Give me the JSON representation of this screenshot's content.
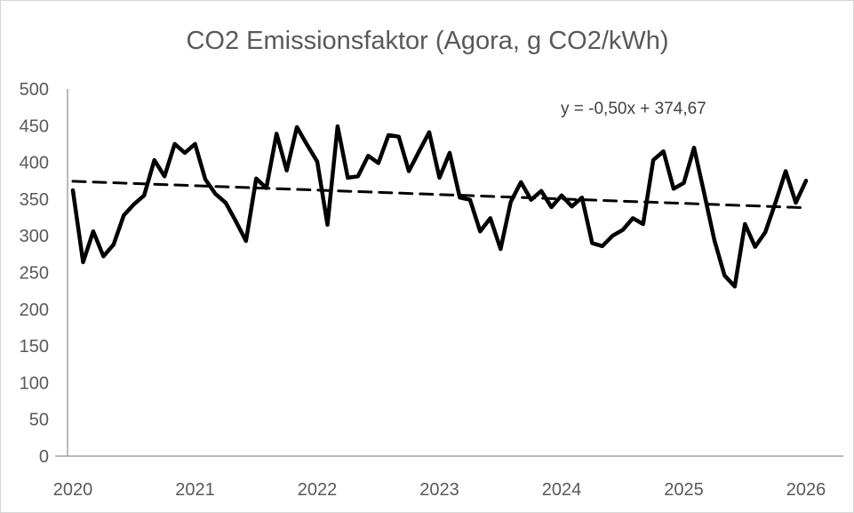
{
  "chart_data": {
    "type": "line",
    "title": "CO2 Emissionsfaktor (Agora, g CO2/kWh)",
    "xlabel": "",
    "ylabel": "",
    "ylim": [
      0,
      500
    ],
    "ytick_step": 50,
    "yticks": [
      0,
      50,
      100,
      150,
      200,
      250,
      300,
      350,
      400,
      450,
      500
    ],
    "xticks": [
      "2020",
      "2021",
      "2022",
      "2023",
      "2024",
      "2025",
      "2026"
    ],
    "grid": false,
    "legend": "none",
    "x": [
      "2020-01",
      "2020-02",
      "2020-03",
      "2020-04",
      "2020-05",
      "2020-06",
      "2020-07",
      "2020-08",
      "2020-09",
      "2020-10",
      "2020-11",
      "2020-12",
      "2021-01",
      "2021-02",
      "2021-03",
      "2021-04",
      "2021-05",
      "2021-06",
      "2021-07",
      "2021-08",
      "2021-09",
      "2021-10",
      "2021-11",
      "2021-12",
      "2022-01",
      "2022-02",
      "2022-03",
      "2022-04",
      "2022-05",
      "2022-06",
      "2022-07",
      "2022-08",
      "2022-09",
      "2022-10",
      "2022-11",
      "2022-12",
      "2023-01",
      "2023-02",
      "2023-03",
      "2023-04",
      "2023-05",
      "2023-06",
      "2023-07",
      "2023-08",
      "2023-09",
      "2023-10",
      "2023-11",
      "2023-12",
      "2024-01",
      "2024-02",
      "2024-03",
      "2024-04",
      "2024-05",
      "2024-06",
      "2024-07",
      "2024-08",
      "2024-09",
      "2024-10",
      "2024-11",
      "2024-12",
      "2025-01",
      "2025-02",
      "2025-03",
      "2025-04",
      "2025-05",
      "2025-06",
      "2025-07",
      "2025-08",
      "2025-09",
      "2025-10",
      "2025-11",
      "2025-12",
      "2026-01"
    ],
    "series": [
      {
        "name": "CO2 Emissionsfaktor (g CO2/kWh)",
        "values": [
          362,
          264,
          306,
          272,
          288,
          328,
          343,
          355,
          403,
          381,
          425,
          413,
          425,
          377,
          357,
          345,
          320,
          293,
          378,
          365,
          439,
          389,
          448,
          424,
          401,
          315,
          449,
          379,
          381,
          409,
          399,
          437,
          435,
          388,
          415,
          441,
          379,
          413,
          352,
          349,
          306,
          324,
          282,
          346,
          373,
          349,
          361,
          339,
          355,
          340,
          352,
          290,
          286,
          300,
          308,
          324,
          316,
          403,
          415,
          364,
          372,
          420,
          358,
          294,
          246,
          231,
          316,
          285,
          305,
          345,
          388,
          345,
          375
        ]
      }
    ],
    "trendline": {
      "equation": "y = -0,50x + 374,67",
      "slope": -0.5,
      "intercept": 374.67,
      "x_unit": "month-index-from-1",
      "style": "dashed"
    },
    "style": {
      "line_color": "#000000",
      "trend_color": "#000000",
      "axis_color": "#a3a3a3",
      "tick_color": "#595959",
      "title_color": "#595959",
      "equation_color": "#404040",
      "background": "#ffffff",
      "border_color": "#d6d6d6"
    }
  }
}
